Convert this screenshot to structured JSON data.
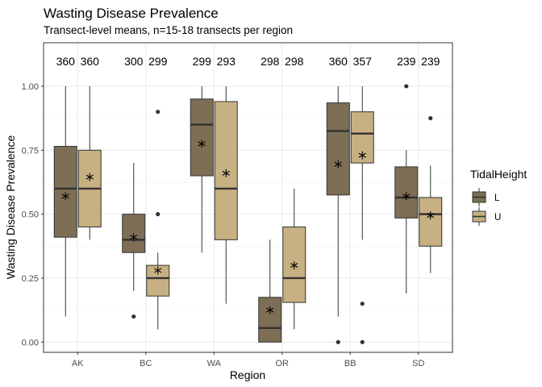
{
  "chart_data": {
    "type": "box",
    "title": "Wasting Disease Prevalence",
    "subtitle": "Transect-level means, n=15-18 transects per region",
    "xlabel": "Region",
    "ylabel": "Wasting Disease Prevalence",
    "ylim": [
      -0.04,
      1.17
    ],
    "yticks": [
      0.0,
      0.25,
      0.5,
      0.75,
      1.0
    ],
    "ytick_labels": [
      "0.00",
      "0.25",
      "0.50",
      "0.75",
      "1.00"
    ],
    "categories": [
      "AK",
      "BC",
      "WA",
      "OR",
      "BB",
      "SD"
    ],
    "grid": true,
    "legend": {
      "title": "TidalHeight",
      "position": "right",
      "entries": [
        {
          "name": "L",
          "color": "#7d6e55"
        },
        {
          "name": "U",
          "color": "#c7b081"
        }
      ]
    },
    "series": [
      {
        "name": "L",
        "color": "#7d6e55",
        "boxes": [
          {
            "q1": 0.41,
            "median": 0.6,
            "q3": 0.765,
            "whisker_low": 0.1,
            "whisker_high": 1.0,
            "mean": 0.57,
            "outliers": [],
            "n": "360"
          },
          {
            "q1": 0.35,
            "median": 0.4,
            "q3": 0.5,
            "whisker_low": 0.2,
            "whisker_high": 0.7,
            "mean": 0.41,
            "outliers": [
              0.1
            ],
            "n": "300"
          },
          {
            "q1": 0.65,
            "median": 0.85,
            "q3": 0.95,
            "whisker_low": 0.35,
            "whisker_high": 1.0,
            "mean": 0.775,
            "outliers": [],
            "n": "299"
          },
          {
            "q1": 0.0,
            "median": 0.055,
            "q3": 0.175,
            "whisker_low": 0.0,
            "whisker_high": 0.4,
            "mean": 0.125,
            "outliers": [],
            "n": "298"
          },
          {
            "q1": 0.575,
            "median": 0.825,
            "q3": 0.935,
            "whisker_low": 0.1,
            "whisker_high": 1.0,
            "mean": 0.695,
            "outliers": [
              0.0
            ],
            "n": "360"
          },
          {
            "q1": 0.485,
            "median": 0.565,
            "q3": 0.685,
            "whisker_low": 0.19,
            "whisker_high": 0.75,
            "mean": 0.57,
            "outliers": [
              1.0
            ],
            "n": "239"
          }
        ]
      },
      {
        "name": "U",
        "color": "#c7b081",
        "boxes": [
          {
            "q1": 0.45,
            "median": 0.6,
            "q3": 0.75,
            "whisker_low": 0.4,
            "whisker_high": 1.0,
            "mean": 0.645,
            "outliers": [],
            "n": "360"
          },
          {
            "q1": 0.18,
            "median": 0.25,
            "q3": 0.3,
            "whisker_low": 0.05,
            "whisker_high": 0.35,
            "mean": 0.28,
            "outliers": [
              0.5,
              0.9
            ],
            "n": "299"
          },
          {
            "q1": 0.4,
            "median": 0.6,
            "q3": 0.94,
            "whisker_low": 0.15,
            "whisker_high": 1.0,
            "mean": 0.66,
            "outliers": [],
            "n": "293"
          },
          {
            "q1": 0.155,
            "median": 0.25,
            "q3": 0.45,
            "whisker_low": 0.05,
            "whisker_high": 0.6,
            "mean": 0.3,
            "outliers": [],
            "n": "298"
          },
          {
            "q1": 0.7,
            "median": 0.815,
            "q3": 0.9,
            "whisker_low": 0.4,
            "whisker_high": 1.0,
            "mean": 0.73,
            "outliers": [
              0.15,
              0.0
            ],
            "n": "357"
          },
          {
            "q1": 0.375,
            "median": 0.5,
            "q3": 0.565,
            "whisker_low": 0.27,
            "whisker_high": 0.69,
            "mean": 0.495,
            "outliers": [
              0.875
            ],
            "n": "239"
          }
        ]
      }
    ]
  }
}
